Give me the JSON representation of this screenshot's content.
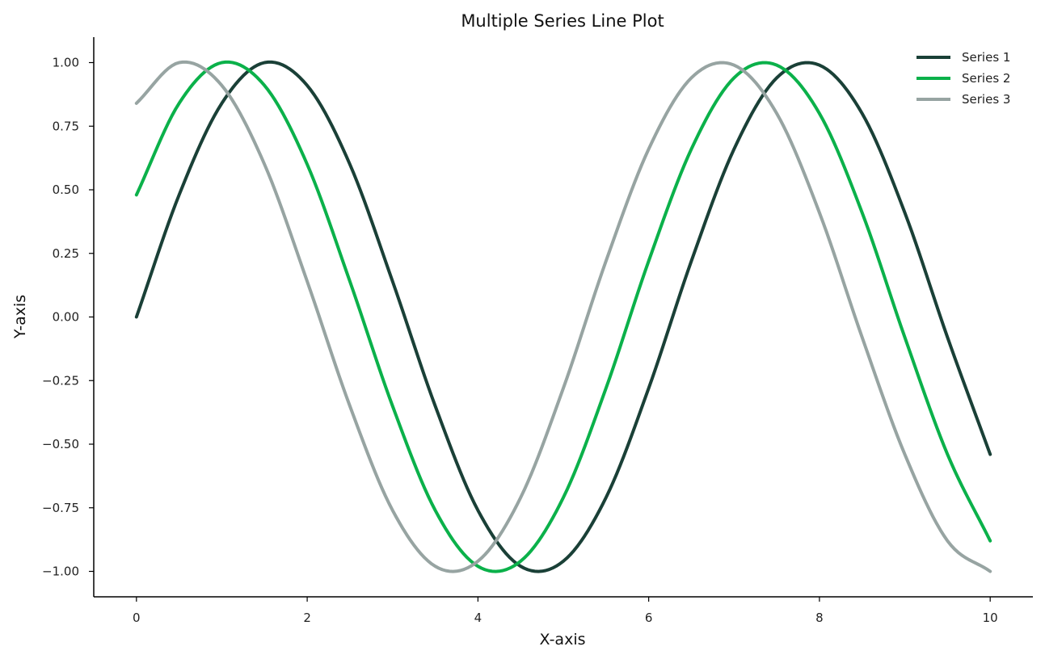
{
  "chart_data": {
    "type": "line",
    "title": "Multiple Series Line Plot",
    "xlabel": "X-axis",
    "ylabel": "Y-axis",
    "xlim": [
      -0.5,
      10.5
    ],
    "ylim": [
      -1.1,
      1.1
    ],
    "xticks": [
      0,
      2,
      4,
      6,
      8,
      10
    ],
    "xtick_labels": [
      "0",
      "2",
      "4",
      "6",
      "8",
      "10"
    ],
    "yticks": [
      1.0,
      0.75,
      0.5,
      0.25,
      0.0,
      -0.25,
      -0.5,
      -0.75,
      -1.0
    ],
    "ytick_labels": [
      "1.00",
      "0.75",
      "0.50",
      "0.25",
      "0.00",
      "−0.25",
      "−0.50",
      "−0.75",
      "−1.00"
    ],
    "grid": false,
    "legend_position": "top-right",
    "x": [
      0.0,
      0.5,
      1.0,
      1.5,
      2.0,
      2.5,
      3.0,
      3.5,
      4.0,
      4.5,
      5.0,
      5.5,
      6.0,
      6.5,
      7.0,
      7.5,
      8.0,
      8.5,
      9.0,
      9.5,
      10.0
    ],
    "series": [
      {
        "name": "Series 1",
        "color": "#1a4037",
        "values": [
          0.0,
          0.48,
          0.84,
          1.0,
          0.91,
          0.6,
          0.14,
          -0.35,
          -0.76,
          -0.98,
          -0.96,
          -0.71,
          -0.28,
          0.22,
          0.66,
          0.94,
          0.99,
          0.8,
          0.41,
          -0.08,
          -0.54
        ]
      },
      {
        "name": "Series 2",
        "color": "#0bb14a",
        "values": [
          0.48,
          0.84,
          1.0,
          0.91,
          0.6,
          0.14,
          -0.35,
          -0.76,
          -0.98,
          -0.96,
          -0.71,
          -0.28,
          0.22,
          0.66,
          0.94,
          0.99,
          0.8,
          0.41,
          -0.08,
          -0.54,
          -0.88
        ]
      },
      {
        "name": "Series 3",
        "color": "#97a4a2",
        "values": [
          0.84,
          1.0,
          0.91,
          0.6,
          0.14,
          -0.35,
          -0.76,
          -0.98,
          -0.96,
          -0.71,
          -0.28,
          0.22,
          0.66,
          0.94,
          0.99,
          0.8,
          0.41,
          -0.08,
          -0.54,
          -0.88,
          -1.0
        ]
      }
    ]
  }
}
